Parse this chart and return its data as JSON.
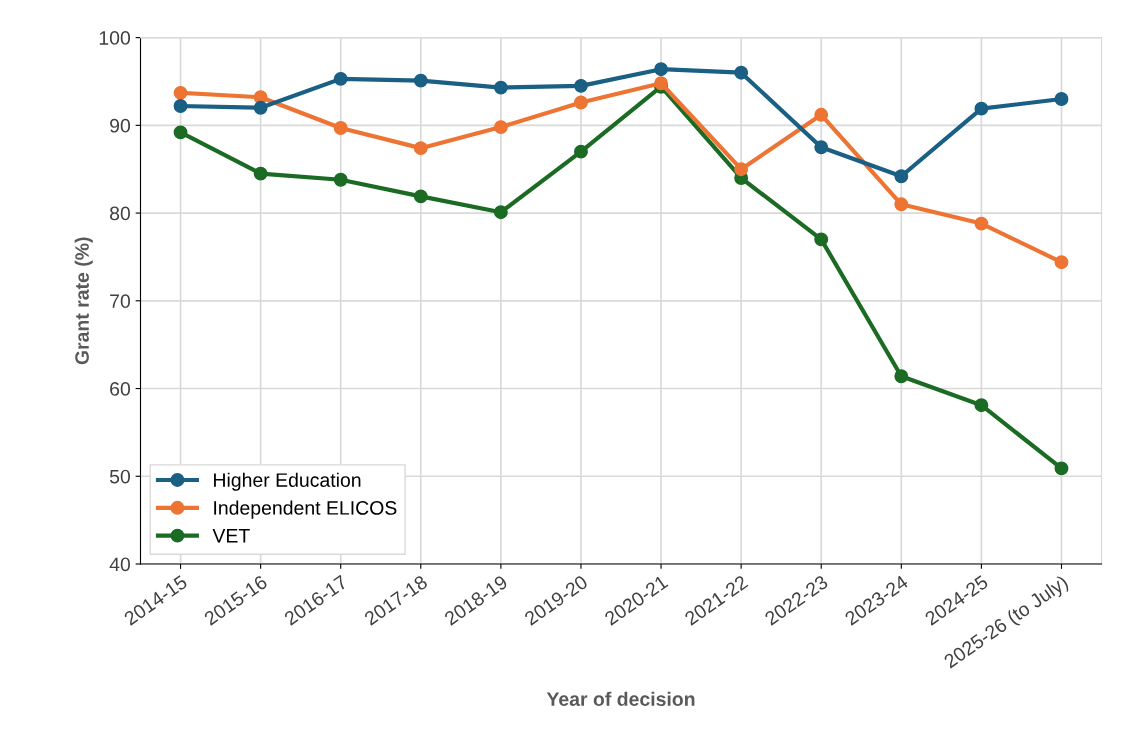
{
  "chart_data": {
    "type": "line",
    "xlabel": "Year of decision",
    "ylabel": "Grant rate (%)",
    "categories": [
      "2014-15",
      "2015-16",
      "2016-17",
      "2017-18",
      "2018-19",
      "2019-20",
      "2020-21",
      "2021-22",
      "2022-23",
      "2023-24",
      "2024-25",
      "2025-26 (to July)"
    ],
    "series": [
      {
        "name": "Higher Education",
        "color": "#1a5f84",
        "values": [
          92.2,
          92.0,
          95.3,
          95.1,
          94.3,
          94.5,
          96.4,
          96.0,
          87.5,
          84.2,
          91.9,
          93.0
        ]
      },
      {
        "name": "Independent ELICOS",
        "color": "#ed7433",
        "values": [
          93.7,
          93.2,
          89.7,
          87.4,
          89.8,
          92.6,
          94.8,
          85.0,
          91.2,
          81.0,
          78.8,
          74.4
        ]
      },
      {
        "name": "VET",
        "color": "#1b6b24",
        "values": [
          89.2,
          84.5,
          83.8,
          81.9,
          80.1,
          87.0,
          94.4,
          84.0,
          77.0,
          61.4,
          58.1,
          50.9
        ]
      }
    ],
    "ylim": [
      40,
      100
    ],
    "yticks": [
      40,
      50,
      60,
      70,
      80,
      90,
      100
    ],
    "grid": true,
    "legend": "bottom left",
    "marker": "circle",
    "line_style": "solid"
  }
}
